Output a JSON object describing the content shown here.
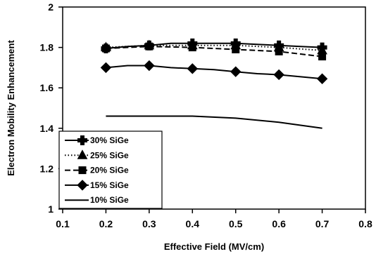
{
  "chart_data": {
    "type": "line",
    "xlabel": "Effective Field (MV/cm)",
    "ylabel": "Electron Mobility Enhancement",
    "xlim": [
      0.1,
      0.8
    ],
    "ylim": [
      1,
      2
    ],
    "x_ticks": [
      "0.1",
      "0.2",
      "0.3",
      "0.4",
      "0.5",
      "0.6",
      "0.7",
      "0.8"
    ],
    "y_ticks": [
      "1",
      "1.2",
      "1.4",
      "1.6",
      "1.8",
      "2"
    ],
    "grid": false,
    "legend_position": "bottom-left",
    "series": [
      {
        "name": "30% SiGe",
        "marker": "cross",
        "line_style": "solid",
        "x": [
          0.2,
          0.25,
          0.3,
          0.35,
          0.4,
          0.45,
          0.5,
          0.55,
          0.6,
          0.65,
          0.7
        ],
        "y": [
          1.795,
          1.805,
          1.81,
          1.82,
          1.82,
          1.82,
          1.82,
          1.815,
          1.81,
          1.805,
          1.8
        ],
        "markers_at": [
          0.2,
          0.3,
          0.4,
          0.5,
          0.6,
          0.7
        ]
      },
      {
        "name": "25% SiGe",
        "marker": "triangle",
        "line_style": "dotted",
        "x": [
          0.2,
          0.3,
          0.4,
          0.5,
          0.6,
          0.7
        ],
        "y": [
          1.8,
          1.81,
          1.81,
          1.81,
          1.8,
          1.785
        ],
        "markers_at": [
          0.2,
          0.3,
          0.4,
          0.5,
          0.6,
          0.7
        ]
      },
      {
        "name": "20% SiGe",
        "marker": "square",
        "line_style": "dashed",
        "x": [
          0.2,
          0.3,
          0.4,
          0.5,
          0.6,
          0.7
        ],
        "y": [
          1.795,
          1.805,
          1.8,
          1.79,
          1.78,
          1.755
        ],
        "markers_at": [
          0.2,
          0.3,
          0.4,
          0.5,
          0.6,
          0.7
        ]
      },
      {
        "name": "15% SiGe",
        "marker": "diamond",
        "line_style": "solid",
        "x": [
          0.2,
          0.25,
          0.3,
          0.35,
          0.4,
          0.45,
          0.5,
          0.55,
          0.6,
          0.65,
          0.7
        ],
        "y": [
          1.7,
          1.71,
          1.71,
          1.7,
          1.695,
          1.69,
          1.68,
          1.67,
          1.665,
          1.655,
          1.645
        ],
        "markers_at": [
          0.2,
          0.3,
          0.4,
          0.5,
          0.6,
          0.7
        ]
      },
      {
        "name": "10% SiGe",
        "marker": "none",
        "line_style": "solid",
        "x": [
          0.2,
          0.3,
          0.4,
          0.5,
          0.6,
          0.7
        ],
        "y": [
          1.46,
          1.46,
          1.46,
          1.45,
          1.43,
          1.4
        ],
        "markers_at": []
      }
    ]
  }
}
